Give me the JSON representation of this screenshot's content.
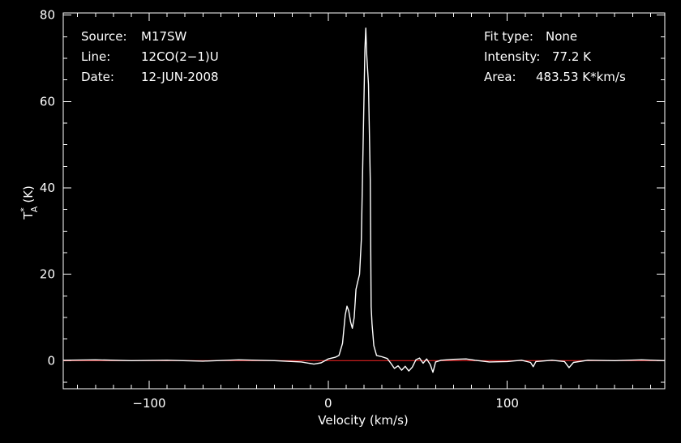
{
  "chart_data": {
    "type": "line",
    "title": "",
    "xlabel": "Velocity (km/s)",
    "ylabel_main": "T",
    "ylabel_sup": "*",
    "ylabel_sub": "A",
    "ylabel_unit": "(K)",
    "xlim": [
      -148,
      188
    ],
    "ylim": [
      -6.5,
      80.5
    ],
    "xticks": [
      -100,
      0,
      100
    ],
    "xtick_labels": [
      "−100",
      "0",
      "100"
    ],
    "yticks": [
      0,
      20,
      40,
      60,
      80
    ],
    "ytick_labels": [
      "0",
      "20",
      "40",
      "60",
      "80"
    ],
    "grid": false,
    "baseline": {
      "y": 0,
      "color": "#e02020"
    },
    "series": [
      {
        "color": "#ffffff",
        "points": [
          [
            -148,
            0.1
          ],
          [
            -130,
            0.2
          ],
          [
            -110,
            0.0
          ],
          [
            -90,
            0.1
          ],
          [
            -70,
            -0.1
          ],
          [
            -50,
            0.2
          ],
          [
            -30,
            0.0
          ],
          [
            -15,
            -0.3
          ],
          [
            -8,
            -0.8
          ],
          [
            -4,
            -0.5
          ],
          [
            0,
            0.4
          ],
          [
            4,
            0.8
          ],
          [
            6,
            1.2
          ],
          [
            8,
            4.0
          ],
          [
            9.5,
            10.5
          ],
          [
            10.5,
            12.6
          ],
          [
            11.5,
            11.5
          ],
          [
            12.5,
            9.0
          ],
          [
            13.5,
            7.5
          ],
          [
            14.5,
            10.0
          ],
          [
            15.5,
            16.5
          ],
          [
            16.5,
            18.3
          ],
          [
            17.5,
            20.0
          ],
          [
            18.5,
            28.0
          ],
          [
            19.5,
            50.0
          ],
          [
            20.5,
            72.0
          ],
          [
            21,
            77.0
          ],
          [
            21.5,
            71.0
          ],
          [
            22.5,
            64.0
          ],
          [
            23.5,
            42.0
          ],
          [
            24,
            12.5
          ],
          [
            24.5,
            8.5
          ],
          [
            25.5,
            3.5
          ],
          [
            27,
            1.2
          ],
          [
            30,
            0.9
          ],
          [
            33,
            0.5
          ],
          [
            35,
            -0.6
          ],
          [
            37,
            -1.8
          ],
          [
            39,
            -1.2
          ],
          [
            41,
            -2.2
          ],
          [
            43,
            -1.3
          ],
          [
            45,
            -2.4
          ],
          [
            47,
            -1.5
          ],
          [
            49,
            0.2
          ],
          [
            51,
            0.6
          ],
          [
            53,
            -0.6
          ],
          [
            55,
            0.4
          ],
          [
            57,
            -0.9
          ],
          [
            58.5,
            -2.7
          ],
          [
            60,
            -0.3
          ],
          [
            63,
            0.1
          ],
          [
            70,
            0.3
          ],
          [
            77,
            0.4
          ],
          [
            82,
            0.1
          ],
          [
            90,
            -0.3
          ],
          [
            100,
            -0.2
          ],
          [
            108,
            0.1
          ],
          [
            113,
            -0.4
          ],
          [
            114.5,
            -1.4
          ],
          [
            116,
            -0.2
          ],
          [
            125,
            0.1
          ],
          [
            132,
            -0.2
          ],
          [
            134.5,
            -1.6
          ],
          [
            137,
            -0.4
          ],
          [
            145,
            0.1
          ],
          [
            160,
            0.0
          ],
          [
            175,
            0.2
          ],
          [
            188,
            0.0
          ]
        ]
      }
    ]
  },
  "info_left": [
    {
      "key": "Source:",
      "value": "M17SW"
    },
    {
      "key": "Line:",
      "value": "12CO(2−1)U"
    },
    {
      "key": "Date:",
      "value": "12-JUN-2008"
    }
  ],
  "info_right": [
    {
      "key": "Fit type:",
      "value": "None"
    },
    {
      "key": "Intensity:",
      "value": "77.2 K"
    },
    {
      "key": "Area:",
      "value": "483.53 K*km/s"
    }
  ]
}
